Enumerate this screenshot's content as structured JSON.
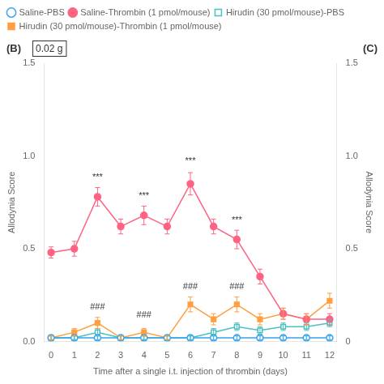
{
  "chart_data": {
    "type": "line",
    "x": [
      0,
      1,
      2,
      3,
      4,
      5,
      6,
      7,
      8,
      9,
      10,
      11,
      12
    ],
    "series": [
      {
        "name": "Saline-PBS",
        "marker": "circle-open",
        "values": [
          0.02,
          0.02,
          0.02,
          0.02,
          0.02,
          0.02,
          0.02,
          0.02,
          0.02,
          0.02,
          0.02,
          0.02,
          0.02
        ],
        "yerr": [
          0.01,
          0.01,
          0.01,
          0.01,
          0.01,
          0.01,
          0.01,
          0.01,
          0.01,
          0.01,
          0.01,
          0.01,
          0.01
        ]
      },
      {
        "name": "Saline-Thrombin (1 pmol/mouse)",
        "marker": "circle",
        "values": [
          0.48,
          0.5,
          0.78,
          0.62,
          0.68,
          0.62,
          0.85,
          0.62,
          0.55,
          0.35,
          0.15,
          0.12,
          0.12
        ],
        "yerr": [
          0.03,
          0.04,
          0.05,
          0.04,
          0.05,
          0.04,
          0.06,
          0.04,
          0.05,
          0.04,
          0.03,
          0.03,
          0.03
        ]
      },
      {
        "name": "Hirudin (30 pmol/mouse)-PBS",
        "marker": "square-open",
        "values": [
          0.02,
          0.02,
          0.05,
          0.02,
          0.02,
          0.02,
          0.02,
          0.05,
          0.08,
          0.06,
          0.08,
          0.08,
          0.1
        ],
        "yerr": [
          0.01,
          0.01,
          0.02,
          0.01,
          0.01,
          0.01,
          0.01,
          0.02,
          0.02,
          0.02,
          0.02,
          0.02,
          0.02
        ]
      },
      {
        "name": "Hirudin (30 pmol/mouse)-Thrombin (1 pmol/mouse)",
        "marker": "square",
        "values": [
          0.02,
          0.05,
          0.1,
          0.02,
          0.05,
          0.02,
          0.2,
          0.12,
          0.2,
          0.12,
          0.15,
          0.12,
          0.22
        ],
        "yerr": [
          0.01,
          0.02,
          0.03,
          0.01,
          0.02,
          0.01,
          0.04,
          0.03,
          0.04,
          0.03,
          0.03,
          0.03,
          0.04
        ]
      }
    ],
    "xlabel": "Time after a single i.t. injection of thrombin (days)",
    "ylabel": "Allodynia Score",
    "xlim": [
      -0.3,
      12.3
    ],
    "xticks": [
      0,
      1,
      2,
      3,
      4,
      5,
      6,
      7,
      8,
      9,
      10,
      11,
      12
    ],
    "ylim": [
      0,
      1.5
    ],
    "yticks": [
      {
        "value": 0,
        "label": "0.0"
      },
      0.5,
      {
        "value": 1,
        "label": "1.0"
      },
      1.5
    ],
    "y2lim": [
      0,
      1.5
    ],
    "y2ticks": [
      0,
      0.5,
      {
        "value": 1,
        "label": "1.0"
      },
      1.5
    ],
    "y2label": "Allodynia Score",
    "annotations": [
      {
        "x": 2,
        "y": 0.86,
        "text": "***"
      },
      {
        "x": 4,
        "y": 0.76,
        "text": "***"
      },
      {
        "x": 6,
        "y": 0.95,
        "text": "***"
      },
      {
        "x": 8,
        "y": 0.63,
        "text": "***"
      },
      {
        "x": 2,
        "y": 0.16,
        "text": "###"
      },
      {
        "x": 4,
        "y": 0.12,
        "text": "###"
      },
      {
        "x": 6,
        "y": 0.27,
        "text": "###"
      },
      {
        "x": 8,
        "y": 0.27,
        "text": "###"
      }
    ],
    "panel_labels": [
      "(B)",
      "(C)"
    ],
    "box_label": "0.02 g",
    "grid": false,
    "legend": "top"
  }
}
